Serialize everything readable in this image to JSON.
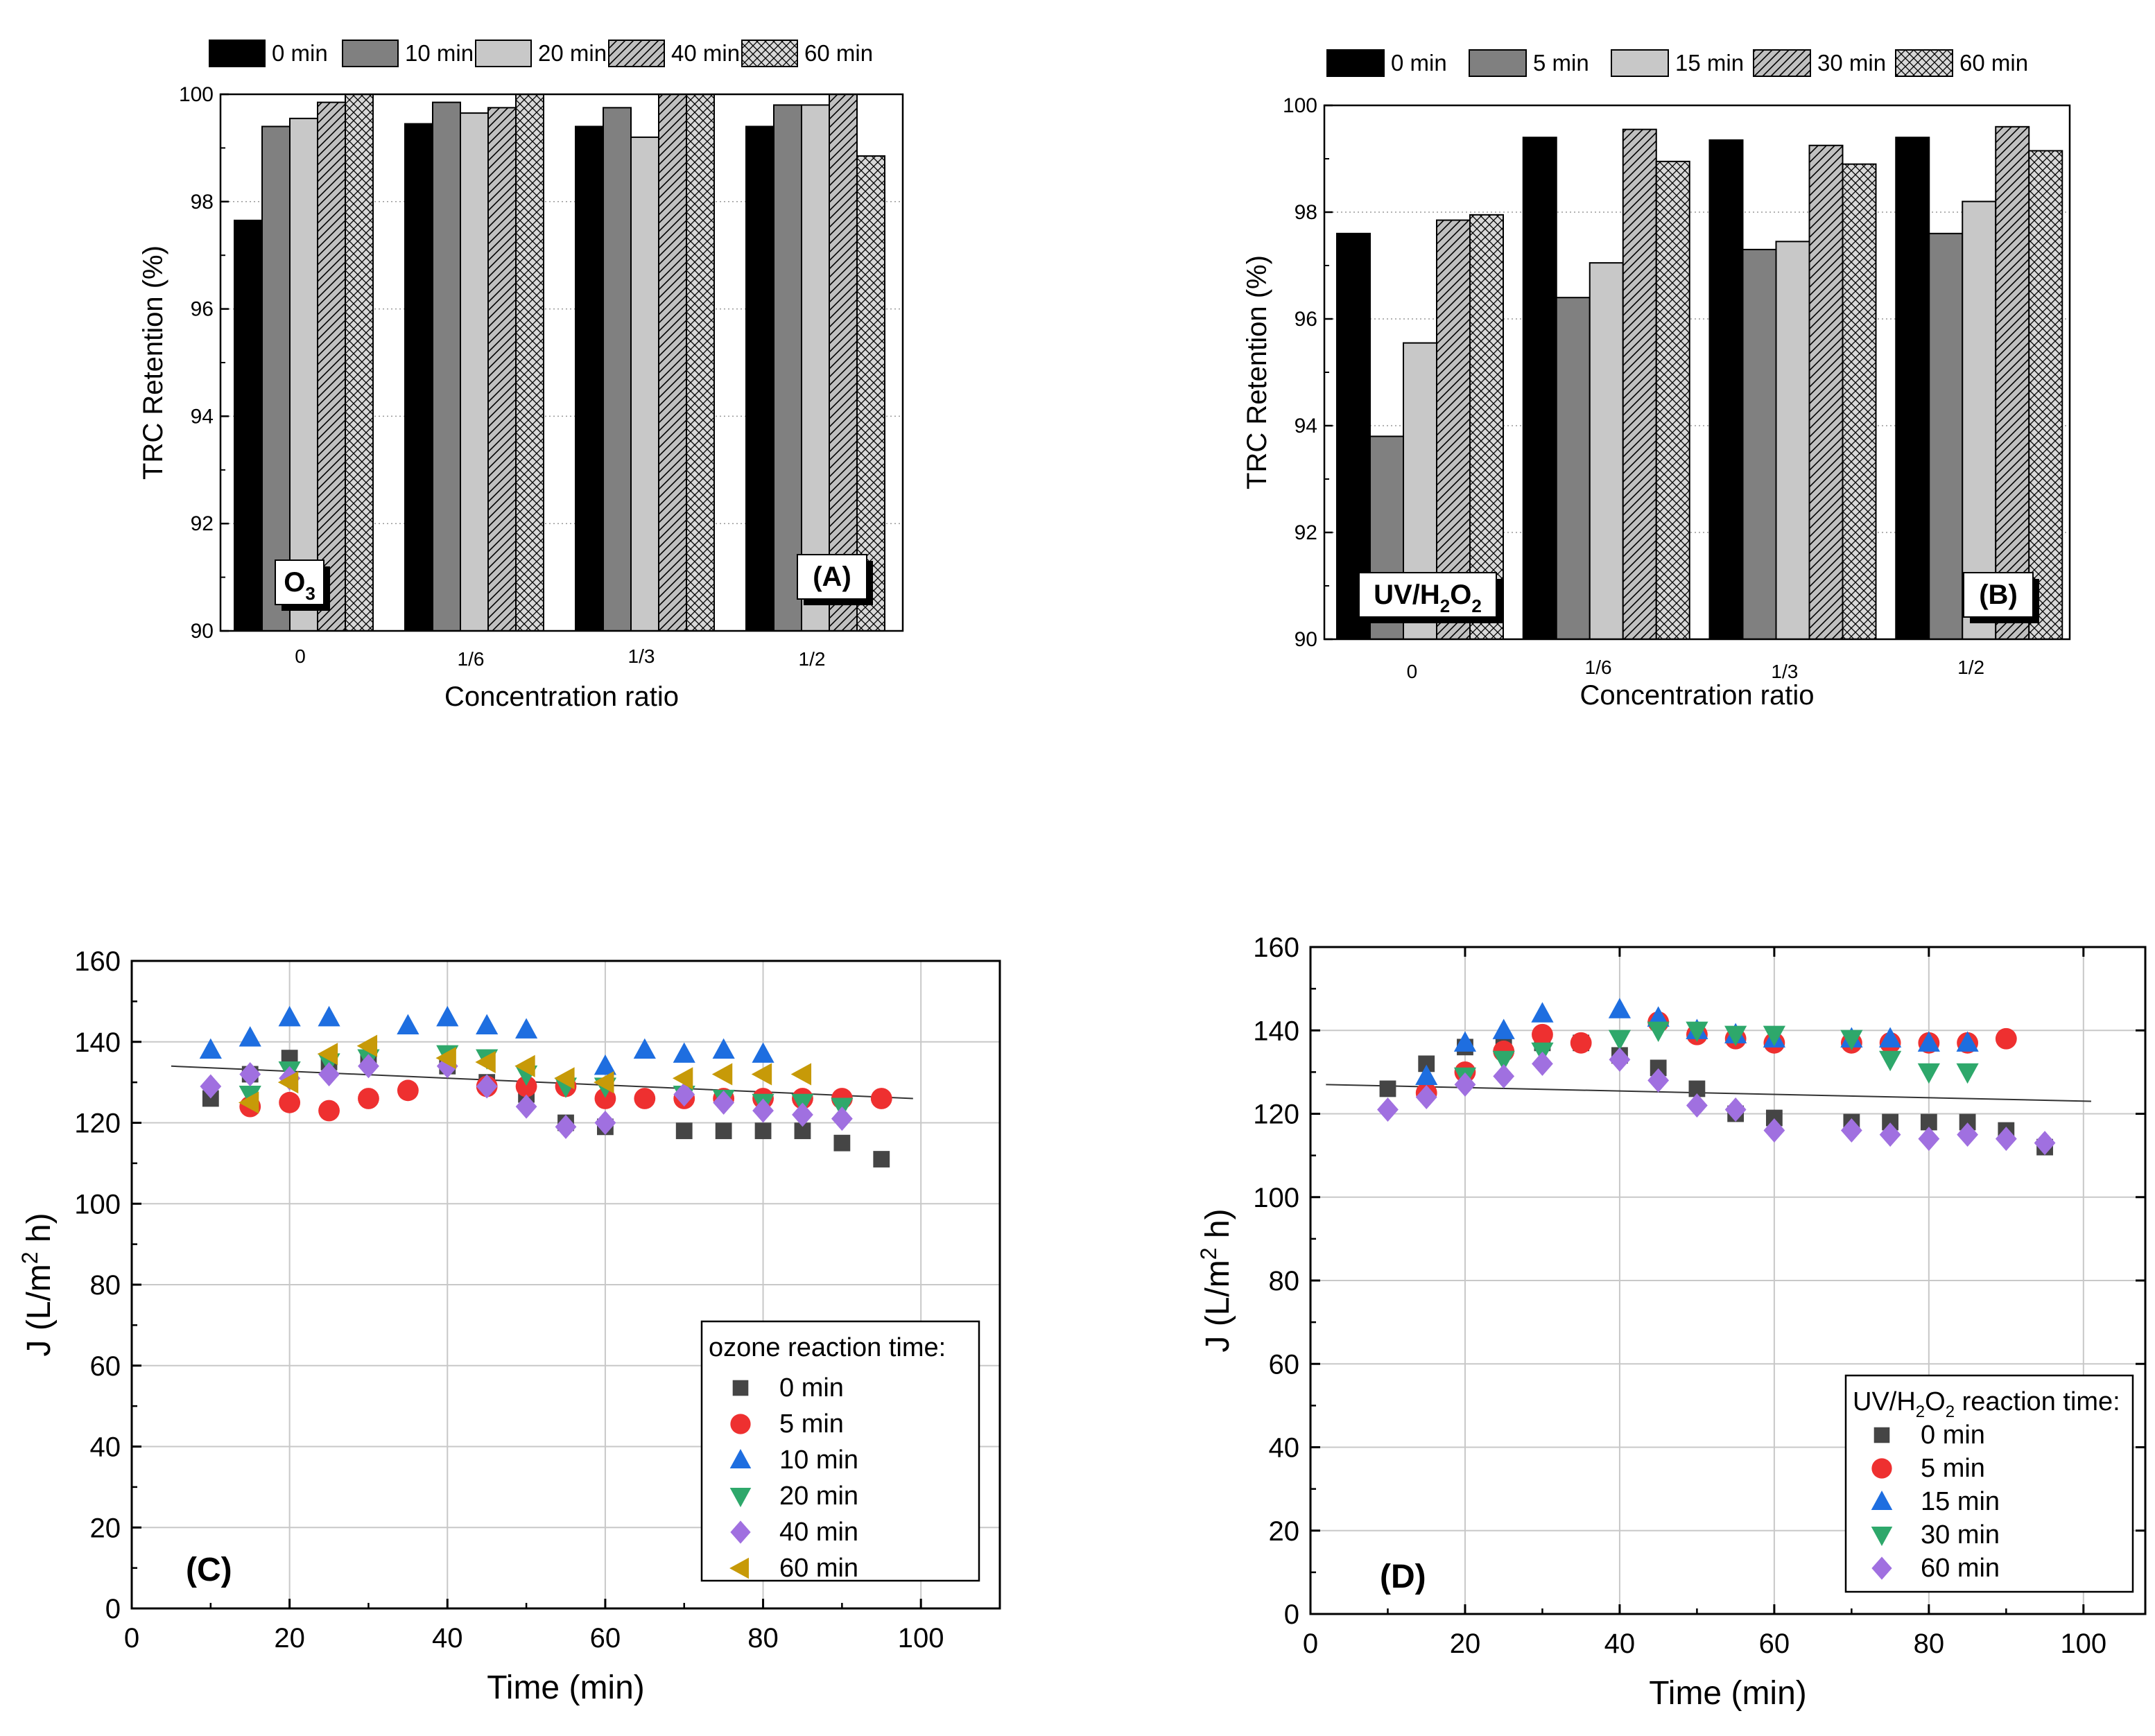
{
  "colors": {
    "black": "#000000",
    "dark": "#808080",
    "light": "#c8c8c8",
    "hatch_bg": "#c0c0c0",
    "square": "#454545",
    "circle": "#ee3030",
    "triangle_up": "#1e6ee0",
    "triangle_down": "#2ea86b",
    "diamond": "#a070e0",
    "triangle_left": "#c79a08"
  },
  "chart_data": [
    {
      "id": "A",
      "type": "bar",
      "tag": "(A)",
      "oxidant": {
        "base": "O",
        "sub": "3",
        "tail": ""
      },
      "title": "",
      "xlabel": "Concentration ratio",
      "ylabel": "TRC Retention (%)",
      "ylim": [
        90,
        100
      ],
      "yticks": [
        "90",
        "92",
        "94",
        "96",
        "98",
        "100"
      ],
      "categories": [
        "0",
        "1/6",
        "1/3",
        "1/2"
      ],
      "series": [
        {
          "name": "0 min",
          "values": [
            97.65,
            99.45,
            99.4,
            99.4
          ]
        },
        {
          "name": "10 min",
          "values": [
            99.4,
            99.85,
            99.75,
            99.8
          ]
        },
        {
          "name": "20 min",
          "values": [
            99.55,
            99.65,
            99.2,
            99.8
          ]
        },
        {
          "name": "40 min",
          "values": [
            99.85,
            99.75,
            100,
            100
          ]
        },
        {
          "name": "60 min",
          "values": [
            100,
            100,
            100,
            98.85
          ]
        }
      ]
    },
    {
      "id": "B",
      "type": "bar",
      "tag": "(B)",
      "oxidant": {
        "base": "UV/H",
        "sub": "2",
        "mid": "O",
        "sub2": "2"
      },
      "title": "",
      "xlabel": "Concentration ratio",
      "ylabel": "TRC Retention (%)",
      "ylim": [
        90,
        100
      ],
      "yticks": [
        "90",
        "92",
        "94",
        "96",
        "98",
        "100"
      ],
      "categories": [
        "0",
        "1/6",
        "1/3",
        "1/2"
      ],
      "series": [
        {
          "name": "0 min",
          "values": [
            97.6,
            99.4,
            99.35,
            99.4
          ]
        },
        {
          "name": "5 min",
          "values": [
            93.8,
            96.4,
            97.3,
            97.6
          ]
        },
        {
          "name": "15 min",
          "values": [
            95.55,
            97.05,
            97.45,
            98.2
          ]
        },
        {
          "name": "30 min",
          "values": [
            97.85,
            99.55,
            99.25,
            99.6
          ]
        },
        {
          "name": "60 min",
          "values": [
            97.95,
            98.95,
            98.9,
            99.15
          ]
        }
      ]
    },
    {
      "id": "C",
      "type": "scatter",
      "tag": "(C)",
      "xlabel": "Time (min)",
      "ylabel_main": "J (L/m",
      "ylabel_sup": "2",
      "ylabel_tail": " h)",
      "xlim": [
        0,
        110
      ],
      "ylim": [
        0,
        160
      ],
      "xticks": [
        "0",
        "20",
        "40",
        "60",
        "80",
        "100"
      ],
      "yticks": [
        "0",
        "20",
        "40",
        "60",
        "80",
        "100",
        "120",
        "140",
        "160"
      ],
      "legend_title": "ozone reaction time:",
      "trendline": {
        "x": [
          5,
          99
        ],
        "y": [
          134,
          126
        ]
      },
      "series": [
        {
          "name": "0 min",
          "marker": "square",
          "points": [
            [
              10,
              126
            ],
            [
              15,
              132
            ],
            [
              20,
              136
            ],
            [
              25,
              135
            ],
            [
              30,
              136
            ],
            [
              40,
              134
            ],
            [
              45,
              130
            ],
            [
              50,
              127
            ],
            [
              55,
              120
            ],
            [
              60,
              119
            ],
            [
              70,
              118
            ],
            [
              75,
              118
            ],
            [
              80,
              118
            ],
            [
              85,
              118
            ],
            [
              90,
              115
            ],
            [
              95,
              111
            ]
          ]
        },
        {
          "name": "5 min",
          "marker": "circle",
          "points": [
            [
              15,
              124
            ],
            [
              20,
              125
            ],
            [
              25,
              123
            ],
            [
              30,
              126
            ],
            [
              35,
              128
            ],
            [
              45,
              129
            ],
            [
              50,
              129
            ],
            [
              55,
              129
            ],
            [
              60,
              126
            ],
            [
              65,
              126
            ],
            [
              70,
              126
            ],
            [
              75,
              126
            ],
            [
              80,
              126
            ],
            [
              85,
              126
            ],
            [
              90,
              126
            ],
            [
              95,
              126
            ]
          ]
        },
        {
          "name": "10 min",
          "marker": "triangle-up",
          "points": [
            [
              10,
              138
            ],
            [
              15,
              141
            ],
            [
              20,
              146
            ],
            [
              25,
              146
            ],
            [
              35,
              144
            ],
            [
              40,
              146
            ],
            [
              45,
              144
            ],
            [
              50,
              143
            ],
            [
              60,
              134
            ],
            [
              65,
              138
            ],
            [
              70,
              137
            ],
            [
              75,
              138
            ],
            [
              80,
              137
            ]
          ]
        },
        {
          "name": "20 min",
          "marker": "triangle-down",
          "points": [
            [
              15,
              127
            ],
            [
              20,
              133
            ],
            [
              25,
              135
            ],
            [
              30,
              136
            ],
            [
              40,
              137
            ],
            [
              45,
              136
            ],
            [
              50,
              132
            ],
            [
              55,
              129
            ],
            [
              60,
              129
            ],
            [
              70,
              127
            ],
            [
              75,
              126
            ],
            [
              80,
              125
            ],
            [
              85,
              125
            ],
            [
              90,
              124
            ]
          ]
        },
        {
          "name": "40 min",
          "marker": "diamond",
          "points": [
            [
              10,
              129
            ],
            [
              15,
              132
            ],
            [
              20,
              131
            ],
            [
              25,
              132
            ],
            [
              30,
              134
            ],
            [
              40,
              134
            ],
            [
              45,
              129
            ],
            [
              50,
              124
            ],
            [
              55,
              119
            ],
            [
              60,
              120
            ],
            [
              70,
              127
            ],
            [
              75,
              125
            ],
            [
              80,
              123
            ],
            [
              85,
              122
            ],
            [
              90,
              121
            ]
          ]
        },
        {
          "name": "60 min",
          "marker": "triangle-left",
          "points": [
            [
              15,
              125
            ],
            [
              20,
              130
            ],
            [
              25,
              137
            ],
            [
              30,
              139
            ],
            [
              40,
              136
            ],
            [
              45,
              135
            ],
            [
              50,
              134
            ],
            [
              55,
              131
            ],
            [
              60,
              130
            ],
            [
              70,
              131
            ],
            [
              75,
              132
            ],
            [
              80,
              132
            ],
            [
              85,
              132
            ]
          ]
        }
      ]
    },
    {
      "id": "D",
      "type": "scatter",
      "tag": "(D)",
      "xlabel": "Time (min)",
      "ylabel_main": "J (L/m",
      "ylabel_sup": "2",
      "ylabel_tail": " h)",
      "xlim": [
        0,
        108
      ],
      "ylim": [
        0,
        160
      ],
      "xticks": [
        "0",
        "20",
        "40",
        "60",
        "80",
        "100"
      ],
      "yticks": [
        "0",
        "20",
        "40",
        "60",
        "80",
        "100",
        "120",
        "140",
        "160"
      ],
      "legend_title_pre": "UV/H",
      "legend_title_sub1": "2",
      "legend_title_mid": "O",
      "legend_title_sub2": "2",
      "legend_title_post": " reaction time:",
      "trendline": {
        "x": [
          2,
          101
        ],
        "y": [
          127,
          123
        ]
      },
      "series": [
        {
          "name": "0 min",
          "marker": "square",
          "points": [
            [
              10,
              126
            ],
            [
              15,
              132
            ],
            [
              20,
              136
            ],
            [
              25,
              137
            ],
            [
              30,
              137
            ],
            [
              35,
              137
            ],
            [
              40,
              134
            ],
            [
              45,
              131
            ],
            [
              50,
              126
            ],
            [
              55,
              120
            ],
            [
              60,
              119
            ],
            [
              70,
              118
            ],
            [
              75,
              118
            ],
            [
              80,
              118
            ],
            [
              85,
              118
            ],
            [
              90,
              116
            ],
            [
              95,
              112
            ]
          ]
        },
        {
          "name": "5 min",
          "marker": "circle",
          "points": [
            [
              15,
              125
            ],
            [
              20,
              130
            ],
            [
              25,
              135
            ],
            [
              30,
              139
            ],
            [
              35,
              137
            ],
            [
              45,
              142
            ],
            [
              50,
              139
            ],
            [
              55,
              138
            ],
            [
              60,
              137
            ],
            [
              70,
              137
            ],
            [
              75,
              137
            ],
            [
              80,
              137
            ],
            [
              85,
              137
            ],
            [
              90,
              138
            ]
          ]
        },
        {
          "name": "15 min",
          "marker": "triangle-up",
          "points": [
            [
              15,
              129
            ],
            [
              20,
              137
            ],
            [
              25,
              140
            ],
            [
              30,
              144
            ],
            [
              40,
              145
            ],
            [
              45,
              143
            ],
            [
              50,
              140
            ],
            [
              55,
              139
            ],
            [
              60,
              138
            ],
            [
              70,
              138
            ],
            [
              75,
              138
            ],
            [
              80,
              137
            ],
            [
              85,
              137
            ]
          ]
        },
        {
          "name": "30 min",
          "marker": "triangle-down",
          "points": [
            [
              20,
              129
            ],
            [
              25,
              133
            ],
            [
              30,
              135
            ],
            [
              40,
              138
            ],
            [
              45,
              140
            ],
            [
              50,
              140
            ],
            [
              55,
              139
            ],
            [
              60,
              139
            ],
            [
              70,
              138
            ],
            [
              75,
              133
            ],
            [
              80,
              130
            ],
            [
              85,
              130
            ]
          ]
        },
        {
          "name": "60 min",
          "marker": "diamond",
          "points": [
            [
              10,
              121
            ],
            [
              15,
              124
            ],
            [
              20,
              127
            ],
            [
              25,
              129
            ],
            [
              30,
              132
            ],
            [
              40,
              133
            ],
            [
              45,
              128
            ],
            [
              50,
              122
            ],
            [
              55,
              121
            ],
            [
              60,
              116
            ],
            [
              70,
              116
            ],
            [
              75,
              115
            ],
            [
              80,
              114
            ],
            [
              85,
              115
            ],
            [
              90,
              114
            ],
            [
              95,
              113
            ]
          ]
        }
      ]
    }
  ]
}
